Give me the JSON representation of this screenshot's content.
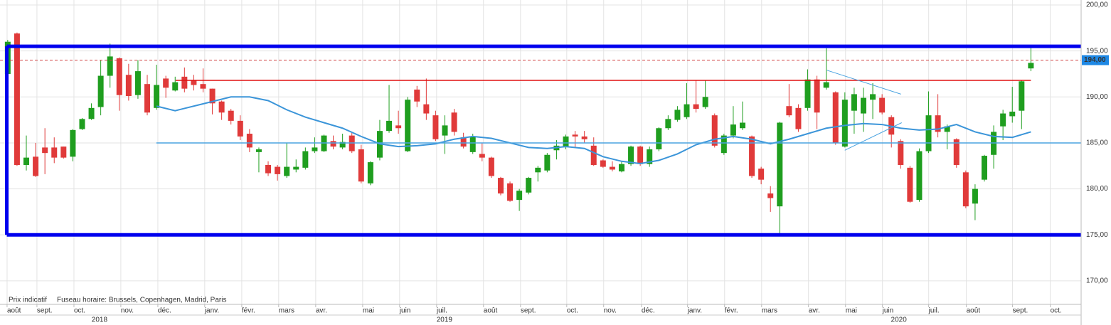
{
  "chart_data": {
    "type": "candlestick",
    "annotations": [
      "Prix indicatif",
      "Fuseau horaire: Brussels, Copenhagen, Madrid, Paris"
    ],
    "up_color": "#1f9e1f",
    "down_color": "#e03a3a",
    "x": [
      -1,
      0,
      1,
      2,
      3,
      4,
      5,
      6,
      7,
      8,
      9,
      10,
      11,
      12,
      13,
      14,
      15,
      16,
      17,
      18,
      19,
      20,
      21,
      22,
      23,
      24,
      25,
      26,
      27,
      28,
      29,
      30,
      31,
      32,
      33,
      34,
      35,
      36,
      37,
      38,
      39,
      40,
      41,
      42,
      43,
      44,
      45,
      46,
      47,
      48,
      49,
      50,
      51,
      52,
      53,
      54,
      55,
      56,
      57,
      58,
      59,
      60,
      61,
      62,
      63,
      64,
      65,
      66,
      67,
      68,
      69,
      70,
      71,
      72,
      73,
      74,
      75,
      76,
      77,
      78,
      79,
      80,
      81,
      82,
      83,
      84,
      85,
      86,
      87,
      88,
      89,
      90,
      91,
      92,
      93,
      94,
      95,
      96,
      97,
      98,
      99,
      100,
      101,
      102,
      103,
      104,
      105,
      106,
      107,
      108,
      109
    ],
    "open": [
      192.5,
      196.9,
      182.6,
      183.5,
      184.5,
      184.5,
      184.6,
      183.5,
      186.5,
      187.6,
      188.9,
      192.3,
      194.2,
      192.4,
      190.2,
      191.4,
      188.8,
      192.0,
      190.7,
      192.2,
      191.8,
      191.4,
      190.9,
      189.5,
      188.5,
      187.4,
      186.0,
      184.0,
      182.6,
      182.4,
      181.4,
      182.1,
      182.3,
      184.1,
      184.1,
      185.2,
      184.5,
      185.8,
      184.3,
      180.6,
      183.4,
      186.3,
      186.9,
      184.1,
      190.8,
      189.2,
      188.0,
      185.8,
      188.3,
      185.6,
      184.0,
      183.8,
      183.4,
      181.2,
      180.6,
      178.8,
      179.6,
      181.8,
      182.0,
      184.2,
      184.6,
      185.9,
      185.7,
      184.7,
      183.1,
      182.4,
      181.9,
      182.7,
      184.6,
      182.7,
      184.3,
      186.6,
      187.5,
      187.8,
      189.2,
      188.9,
      188.0,
      183.9,
      185.8,
      186.6,
      185.7,
      182.2,
      179.5,
      178.1,
      189.0,
      188.8,
      188.8,
      191.9,
      191.0,
      190.5,
      184.6,
      188.5,
      188.2,
      189.7,
      189.9,
      187.8,
      185.2,
      182.3,
      178.8,
      184.1,
      188.0,
      186.2,
      185.4,
      181.8,
      178.4,
      181.0,
      183.7,
      186.8,
      187.9,
      188.5,
      193.1
    ],
    "high": [
      196.2,
      197.0,
      185.8,
      185.0,
      186.6,
      185.6,
      184.6,
      186.5,
      187.7,
      189.3,
      194.0,
      195.8,
      194.3,
      193.6,
      194.0,
      192.4,
      193.5,
      192.3,
      192.2,
      193.2,
      192.4,
      193.1,
      190.9,
      189.6,
      188.7,
      188.0,
      186.5,
      184.5,
      183.0,
      182.6,
      185.0,
      183.2,
      184.5,
      185.6,
      185.9,
      185.8,
      186.0,
      186.1,
      184.8,
      183.0,
      187.5,
      191.3,
      188.5,
      190.0,
      191.2,
      192.0,
      188.5,
      188.0,
      188.7,
      186.1,
      186.0,
      185.0,
      183.5,
      181.3,
      180.8,
      180.0,
      181.3,
      182.5,
      183.9,
      185.3,
      185.9,
      186.3,
      186.3,
      185.6,
      183.2,
      183.0,
      183.0,
      184.7,
      184.7,
      184.6,
      186.7,
      188.0,
      189.0,
      191.5,
      191.8,
      191.8,
      188.2,
      186.0,
      189.0,
      189.5,
      185.8,
      182.4,
      180.3,
      187.3,
      191.4,
      189.2,
      193.0,
      192.3,
      195.3,
      190.6,
      190.5,
      191.0,
      191.0,
      191.5,
      190.3,
      188.0,
      185.4,
      182.5,
      184.4,
      190.6,
      190.3,
      187.0,
      185.5,
      182.0,
      180.5,
      183.7,
      186.9,
      188.6,
      191.1,
      191.8,
      195.5
    ],
    "low": [
      192.3,
      182.5,
      182.0,
      181.3,
      181.6,
      182.8,
      183.3,
      183.0,
      186.4,
      187.5,
      188.0,
      191.0,
      188.5,
      189.6,
      189.8,
      188.0,
      188.6,
      189.9,
      190.6,
      190.5,
      190.7,
      190.5,
      188.1,
      187.5,
      187.0,
      185.3,
      184.0,
      181.8,
      181.4,
      180.9,
      181.2,
      181.8,
      182.1,
      183.9,
      184.0,
      184.3,
      184.3,
      183.9,
      180.6,
      180.4,
      183.1,
      186.1,
      186.0,
      184.0,
      188.9,
      187.5,
      185.2,
      183.8,
      185.8,
      184.4,
      183.8,
      183.0,
      181.2,
      179.3,
      178.6,
      177.6,
      179.4,
      180.8,
      181.8,
      183.2,
      184.3,
      184.5,
      185.0,
      182.5,
      182.3,
      181.9,
      181.8,
      182.5,
      182.5,
      182.4,
      184.1,
      186.4,
      187.3,
      187.6,
      188.3,
      188.7,
      184.5,
      183.7,
      185.5,
      186.4,
      181.2,
      180.5,
      177.5,
      175.1,
      187.8,
      186.2,
      188.5,
      186.5,
      190.8,
      184.8,
      184.5,
      186.0,
      186.2,
      187.6,
      188.1,
      184.5,
      182.2,
      178.5,
      178.6,
      183.9,
      185.6,
      184.3,
      182.3,
      177.9,
      176.6,
      180.8,
      182.2,
      185.3,
      187.2,
      186.5,
      192.8
    ],
    "close": [
      196.0,
      182.6,
      183.4,
      181.4,
      183.9,
      183.4,
      183.4,
      186.4,
      187.6,
      188.8,
      192.3,
      194.4,
      190.2,
      190.1,
      192.8,
      188.3,
      191.3,
      191.0,
      191.6,
      190.9,
      191.3,
      190.9,
      189.3,
      188.3,
      187.4,
      185.7,
      184.5,
      184.3,
      181.7,
      181.6,
      182.4,
      182.4,
      184.1,
      184.5,
      185.8,
      184.6,
      185.1,
      184.1,
      180.8,
      182.9,
      186.3,
      187.4,
      186.6,
      189.7,
      189.5,
      188.2,
      185.4,
      186.9,
      186.2,
      184.6,
      185.7,
      183.4,
      181.4,
      179.5,
      178.7,
      179.8,
      181.2,
      182.3,
      183.7,
      184.7,
      185.7,
      185.7,
      185.4,
      182.6,
      182.4,
      182.1,
      182.7,
      184.6,
      182.7,
      184.3,
      186.6,
      187.6,
      188.6,
      189.2,
      188.7,
      190.0,
      184.7,
      185.8,
      187.0,
      187.2,
      181.4,
      181.0,
      179.0,
      187.2,
      188.0,
      186.5,
      191.9,
      188.3,
      191.6,
      185.0,
      189.7,
      190.3,
      189.9,
      190.3,
      188.3,
      185.9,
      182.6,
      178.6,
      184.1,
      188.0,
      186.2,
      186.8,
      182.6,
      178.1,
      180.0,
      183.6,
      186.2,
      188.2,
      188.4,
      191.7,
      193.7
    ],
    "moving_average": {
      "color": "#3b95d9",
      "x": [
        15,
        17,
        20,
        23,
        25,
        27,
        29,
        31,
        33,
        35,
        37,
        39,
        41,
        43,
        45,
        47,
        49,
        51,
        53,
        55,
        57,
        59,
        61,
        63,
        65,
        67,
        69,
        71,
        73,
        75,
        77,
        79,
        81,
        83,
        85,
        87,
        89,
        91,
        93,
        95,
        97,
        99,
        101,
        103,
        105,
        107,
        109
      ],
      "values": [
        189.0,
        188.5,
        189.25,
        190.0,
        190.0,
        189.6,
        188.6,
        187.8,
        187.2,
        186.6,
        185.7,
        184.9,
        184.6,
        184.7,
        184.9,
        185.4,
        185.7,
        185.5,
        185.0,
        184.5,
        184.4,
        184.6,
        184.4,
        183.5,
        183.0,
        182.75,
        183.1,
        183.8,
        184.8,
        185.4,
        185.7,
        185.4,
        184.9,
        185.4,
        186.0,
        186.6,
        186.9,
        187.1,
        187.0,
        186.6,
        186.4,
        186.5,
        187.0,
        186.2,
        185.7,
        185.6,
        186.2
      ]
    },
    "hlines": [
      {
        "value": 191.8,
        "color": "#e01010",
        "style": "solid",
        "x": [
          17.05,
          109.0
        ]
      },
      {
        "value": 194.0,
        "color": "#d04040",
        "style": "dashed"
      },
      {
        "value": 185.0,
        "color": "#4aa3e0",
        "style": "solid",
        "x": [
          14.98,
          114.4
        ]
      }
    ],
    "box": {
      "top": 195.5,
      "bottom": 175.0,
      "x_start": -1.1,
      "color": "#0000ee"
    },
    "trendlines": [
      {
        "color": "#4aa3e0",
        "x": [
          87.08,
          95.03
        ],
        "values": [
          192.9,
          190.3
        ]
      },
      {
        "color": "#4aa3e0",
        "x": [
          88.99,
          95.11
        ],
        "values": [
          184.2,
          187.2
        ]
      }
    ],
    "last_price": {
      "value": 194.0,
      "label": "194,00",
      "color": "#1e88e5"
    },
    "xlim": [
      -1.83,
      114.4
    ],
    "xticks": [
      {
        "value": -1.07,
        "label": "août"
      },
      {
        "value": 2.14,
        "label": "sept."
      },
      {
        "value": 6.12,
        "label": "oct."
      },
      {
        "value": 11.16,
        "label": "nov."
      },
      {
        "value": 15.14,
        "label": "déc."
      },
      {
        "value": 20.18,
        "label": "janv."
      },
      {
        "value": 24.16,
        "label": "févr."
      },
      {
        "value": 28.13,
        "label": "mars"
      },
      {
        "value": 32.11,
        "label": "avr."
      },
      {
        "value": 37.16,
        "label": "mai"
      },
      {
        "value": 41.13,
        "label": "juin"
      },
      {
        "value": 45.11,
        "label": "juil."
      },
      {
        "value": 50.15,
        "label": "août"
      },
      {
        "value": 54.13,
        "label": "sept."
      },
      {
        "value": 59.1,
        "label": "oct."
      },
      {
        "value": 63.07,
        "label": "nov."
      },
      {
        "value": 67.13,
        "label": "déc."
      },
      {
        "value": 72.09,
        "label": "janv."
      },
      {
        "value": 76.07,
        "label": "févr."
      },
      {
        "value": 80.05,
        "label": "mars"
      },
      {
        "value": 85.09,
        "label": "avr."
      },
      {
        "value": 89.07,
        "label": "mai"
      },
      {
        "value": 93.04,
        "label": "juin"
      },
      {
        "value": 98.01,
        "label": "juil."
      },
      {
        "value": 102.06,
        "label": "août"
      },
      {
        "value": 107.03,
        "label": "sept."
      },
      {
        "value": 111.08,
        "label": "oct."
      }
    ],
    "year_ticks": [
      {
        "value": 8.87,
        "label": "2018"
      },
      {
        "value": 45.95,
        "label": "2019"
      },
      {
        "value": 94.8,
        "label": "2020"
      }
    ],
    "ylim": [
      167.44,
      200.54
    ],
    "yticks": [
      {
        "value": 170,
        "label": "170,00"
      },
      {
        "value": 175,
        "label": "175,00"
      },
      {
        "value": 180,
        "label": "180,00"
      },
      {
        "value": 185,
        "label": "185,00"
      },
      {
        "value": 190,
        "label": "190,00"
      },
      {
        "value": 195,
        "label": "195,00"
      },
      {
        "value": 200,
        "label": "200,00"
      }
    ],
    "grid": true
  }
}
